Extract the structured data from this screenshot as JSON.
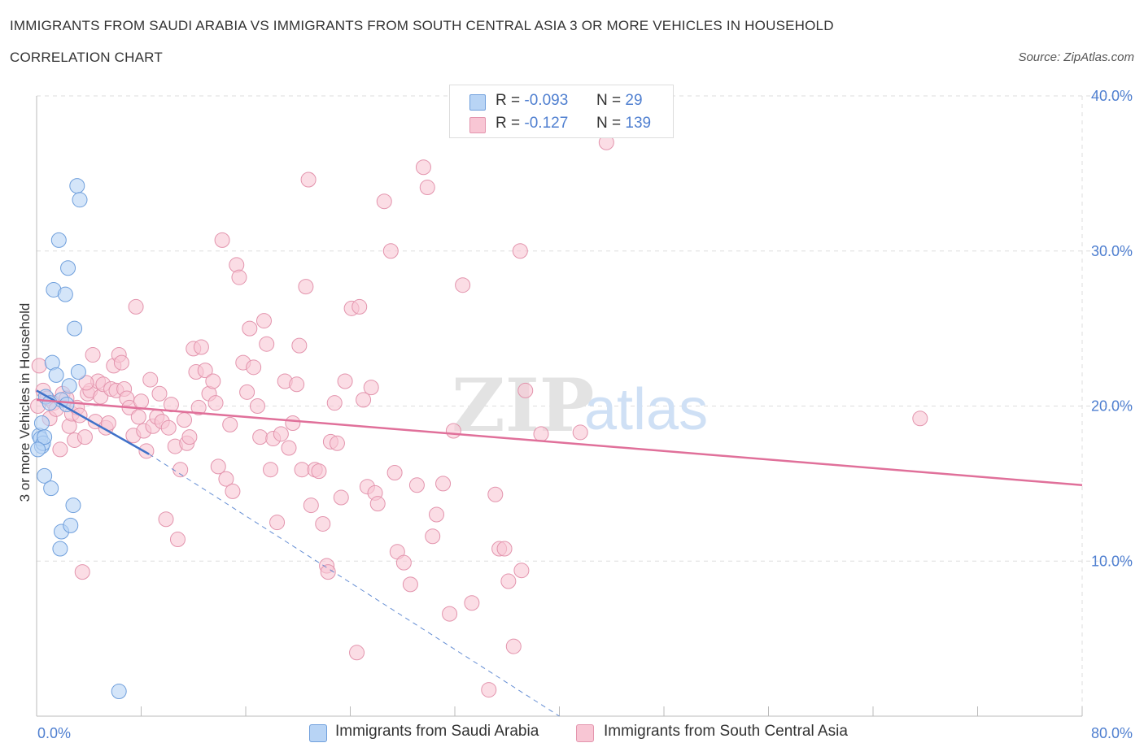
{
  "title": "IMMIGRANTS FROM SAUDI ARABIA VS IMMIGRANTS FROM SOUTH CENTRAL ASIA 3 OR MORE VEHICLES IN HOUSEHOLD",
  "subtitle": "CORRELATION CHART",
  "source": "Source: ZipAtlas.com",
  "watermark": {
    "zip": "ZIP",
    "atlas": "atlas"
  },
  "legend": {
    "r_label": "R =",
    "n_label": "N =",
    "rows": [
      {
        "r": "-0.093",
        "n": "29",
        "fill": "#b8d4f5",
        "stroke": "#6f9fdc"
      },
      {
        "r": "-0.127",
        "n": "139",
        "fill": "#f8c6d4",
        "stroke": "#e394ad"
      }
    ]
  },
  "colors": {
    "blue_fill": "#b8d4f5",
    "blue_stroke": "#6f9fdc",
    "blue_line": "#3f72c9",
    "pink_fill": "#f8c6d4",
    "pink_stroke": "#e394ad",
    "pink_line": "#e0709a",
    "tick_text": "#4f7fd0",
    "grid": "#dddddd"
  },
  "chart_data": {
    "type": "scatter",
    "title": "IMMIGRANTS FROM SAUDI ARABIA VS IMMIGRANTS FROM SOUTH CENTRAL ASIA 3 OR MORE VEHICLES IN HOUSEHOLD",
    "subtitle": "CORRELATION CHART",
    "xlabel": "",
    "ylabel": "3 or more Vehicles in Household",
    "xlim": [
      0,
      80
    ],
    "ylim": [
      0,
      40
    ],
    "x_tick_labels": [
      "0.0%",
      "80.0%"
    ],
    "y_ticks": [
      10,
      20,
      30,
      40
    ],
    "y_tick_labels": [
      "10.0%",
      "20.0%",
      "30.0%",
      "40.0%"
    ],
    "grid": "horizontal dashed",
    "legend_position": "bottom",
    "series": [
      {
        "name": "Immigrants from Saudi Arabia",
        "r": -0.093,
        "n": 29,
        "trend": {
          "x": [
            0,
            8.6
          ],
          "y": [
            21.0,
            16.9
          ],
          "dashed_to": {
            "x": 40,
            "y": 0
          }
        },
        "points": [
          [
            0.2,
            18.1
          ],
          [
            0.4,
            17.4
          ],
          [
            0.3,
            17.9
          ],
          [
            0.5,
            17.6
          ],
          [
            0.4,
            18.9
          ],
          [
            0.6,
            18.0
          ],
          [
            0.7,
            20.6
          ],
          [
            0.6,
            15.5
          ],
          [
            1.1,
            14.7
          ],
          [
            1.2,
            22.8
          ],
          [
            1.5,
            22.0
          ],
          [
            1.9,
            20.4
          ],
          [
            2.3,
            20.1
          ],
          [
            2.5,
            21.3
          ],
          [
            1.3,
            27.5
          ],
          [
            2.2,
            27.2
          ],
          [
            1.7,
            30.7
          ],
          [
            2.4,
            28.9
          ],
          [
            2.9,
            25.0
          ],
          [
            3.2,
            22.2
          ],
          [
            3.1,
            34.2
          ],
          [
            3.3,
            33.3
          ],
          [
            1.9,
            11.9
          ],
          [
            1.8,
            10.8
          ],
          [
            2.6,
            12.3
          ],
          [
            2.8,
            13.6
          ],
          [
            6.3,
            1.6
          ],
          [
            0.1,
            17.2
          ],
          [
            1.0,
            20.2
          ]
        ]
      },
      {
        "name": "Immigrants from South Central Asia",
        "r": -0.127,
        "n": 139,
        "trend": {
          "x": [
            0,
            80
          ],
          "y": [
            20.4,
            14.9
          ]
        },
        "points": [
          [
            0.2,
            22.6
          ],
          [
            0.5,
            21.0
          ],
          [
            0.8,
            20.5
          ],
          [
            1.0,
            19.2
          ],
          [
            1.3,
            20.2
          ],
          [
            1.5,
            19.8
          ],
          [
            1.8,
            17.2
          ],
          [
            2.0,
            20.8
          ],
          [
            2.3,
            20.5
          ],
          [
            2.5,
            18.7
          ],
          [
            2.7,
            19.5
          ],
          [
            2.9,
            17.8
          ],
          [
            3.1,
            19.9
          ],
          [
            3.3,
            19.4
          ],
          [
            3.5,
            9.3
          ],
          [
            3.7,
            18.0
          ],
          [
            3.9,
            20.8
          ],
          [
            4.1,
            21.0
          ],
          [
            4.3,
            23.3
          ],
          [
            4.5,
            19.0
          ],
          [
            4.7,
            21.6
          ],
          [
            4.9,
            20.6
          ],
          [
            5.1,
            21.4
          ],
          [
            5.3,
            18.6
          ],
          [
            5.5,
            18.9
          ],
          [
            5.7,
            21.1
          ],
          [
            5.9,
            22.6
          ],
          [
            6.1,
            21.0
          ],
          [
            6.3,
            23.3
          ],
          [
            6.5,
            22.8
          ],
          [
            6.7,
            21.1
          ],
          [
            6.9,
            20.5
          ],
          [
            7.1,
            19.9
          ],
          [
            7.4,
            18.1
          ],
          [
            7.6,
            26.4
          ],
          [
            7.8,
            19.3
          ],
          [
            8.0,
            20.3
          ],
          [
            8.2,
            18.4
          ],
          [
            8.4,
            17.1
          ],
          [
            8.7,
            21.7
          ],
          [
            8.9,
            18.7
          ],
          [
            9.2,
            19.3
          ],
          [
            9.4,
            20.8
          ],
          [
            9.6,
            19.0
          ],
          [
            9.9,
            12.7
          ],
          [
            10.1,
            18.6
          ],
          [
            10.3,
            20.1
          ],
          [
            10.6,
            17.4
          ],
          [
            10.8,
            11.4
          ],
          [
            11.0,
            15.9
          ],
          [
            11.3,
            19.1
          ],
          [
            11.5,
            17.6
          ],
          [
            11.7,
            18.0
          ],
          [
            12.0,
            23.7
          ],
          [
            12.2,
            22.2
          ],
          [
            12.4,
            19.9
          ],
          [
            12.6,
            23.8
          ],
          [
            12.9,
            22.3
          ],
          [
            13.2,
            20.8
          ],
          [
            13.5,
            21.6
          ],
          [
            13.7,
            20.2
          ],
          [
            13.9,
            16.1
          ],
          [
            14.2,
            30.7
          ],
          [
            14.5,
            15.3
          ],
          [
            14.8,
            18.8
          ],
          [
            15.0,
            14.5
          ],
          [
            15.3,
            29.1
          ],
          [
            15.5,
            28.3
          ],
          [
            15.8,
            22.8
          ],
          [
            16.1,
            20.9
          ],
          [
            16.3,
            25.0
          ],
          [
            16.6,
            22.5
          ],
          [
            16.9,
            20.0
          ],
          [
            17.1,
            18.0
          ],
          [
            17.4,
            25.5
          ],
          [
            17.6,
            24.0
          ],
          [
            17.9,
            15.9
          ],
          [
            18.1,
            17.9
          ],
          [
            18.4,
            12.5
          ],
          [
            18.7,
            18.2
          ],
          [
            19.0,
            21.6
          ],
          [
            19.3,
            17.3
          ],
          [
            19.6,
            18.9
          ],
          [
            19.9,
            21.4
          ],
          [
            20.1,
            23.9
          ],
          [
            20.3,
            15.9
          ],
          [
            20.6,
            27.7
          ],
          [
            20.8,
            34.6
          ],
          [
            21.0,
            13.6
          ],
          [
            21.3,
            15.9
          ],
          [
            21.6,
            15.8
          ],
          [
            21.9,
            12.4
          ],
          [
            22.2,
            9.7
          ],
          [
            22.3,
            9.3
          ],
          [
            22.5,
            17.7
          ],
          [
            22.8,
            20.2
          ],
          [
            23.0,
            17.6
          ],
          [
            23.3,
            14.1
          ],
          [
            23.6,
            21.6
          ],
          [
            24.1,
            26.3
          ],
          [
            24.5,
            4.1
          ],
          [
            24.7,
            26.4
          ],
          [
            25.0,
            20.4
          ],
          [
            25.3,
            14.8
          ],
          [
            25.6,
            21.2
          ],
          [
            25.9,
            14.4
          ],
          [
            26.1,
            13.7
          ],
          [
            26.6,
            33.2
          ],
          [
            27.1,
            30.0
          ],
          [
            27.4,
            15.7
          ],
          [
            27.6,
            10.6
          ],
          [
            28.1,
            9.9
          ],
          [
            28.6,
            8.5
          ],
          [
            29.1,
            14.9
          ],
          [
            29.6,
            35.4
          ],
          [
            29.9,
            34.1
          ],
          [
            30.3,
            11.6
          ],
          [
            30.6,
            13.0
          ],
          [
            31.1,
            15.0
          ],
          [
            31.6,
            6.6
          ],
          [
            31.9,
            18.4
          ],
          [
            32.6,
            27.8
          ],
          [
            33.3,
            7.3
          ],
          [
            34.6,
            1.7
          ],
          [
            35.1,
            14.3
          ],
          [
            35.4,
            10.8
          ],
          [
            35.8,
            10.8
          ],
          [
            36.1,
            8.7
          ],
          [
            36.5,
            4.5
          ],
          [
            37.0,
            30.0
          ],
          [
            37.1,
            9.4
          ],
          [
            37.4,
            21.0
          ],
          [
            38.6,
            18.2
          ],
          [
            41.6,
            18.3
          ],
          [
            43.6,
            37.0
          ],
          [
            67.6,
            19.2
          ],
          [
            0.1,
            20.0
          ],
          [
            3.8,
            21.5
          ]
        ]
      }
    ]
  },
  "bottom_legend": [
    {
      "label": "Immigrants from Saudi Arabia"
    },
    {
      "label": "Immigrants from South Central Asia"
    }
  ]
}
